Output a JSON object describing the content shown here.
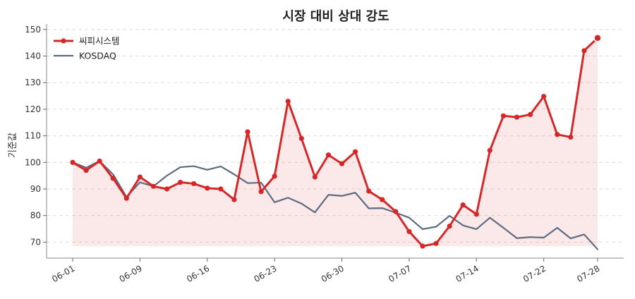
{
  "chart_data": {
    "type": "line",
    "title": "시장 대비 상대 강도",
    "xlabel": "",
    "ylabel": "기준값",
    "ylim": [
      64,
      151
    ],
    "yticks": [
      70,
      80,
      90,
      100,
      110,
      120,
      130,
      140,
      150
    ],
    "grid": "horizontal-dashed",
    "legend_position": "top-left",
    "x_tick_labels": [
      "06-01",
      "06-09",
      "06-16",
      "06-23",
      "06-30",
      "07-07",
      "07-14",
      "07-22",
      "07-28"
    ],
    "x_tick_index": [
      0,
      5,
      10,
      15,
      20,
      25,
      30,
      35,
      39
    ],
    "series": [
      {
        "name": "씨피시스템",
        "color": "#d62728",
        "fill": true,
        "markers": true,
        "values": [
          100.0,
          97.0,
          100.5,
          94.0,
          86.5,
          94.5,
          91.0,
          90.0,
          92.5,
          92.0,
          90.3,
          90.0,
          86.0,
          111.5,
          89.0,
          94.8,
          123.0,
          109.0,
          94.5,
          102.8,
          99.5,
          104.0,
          89.2,
          86.0,
          81.5,
          74.0,
          68.5,
          69.5,
          76.0,
          84.0,
          80.5,
          104.5,
          117.5,
          117.0,
          118.0,
          124.8,
          110.5,
          109.5,
          142.0,
          146.8
        ]
      },
      {
        "name": "KOSDAQ",
        "color": "#5d6b82",
        "fill": false,
        "markers": false,
        "values": [
          100.0,
          98.0,
          100.5,
          95.5,
          87.0,
          92.5,
          91.0,
          95.0,
          98.2,
          98.6,
          97.2,
          98.5,
          95.5,
          92.2,
          92.4,
          85.0,
          86.7,
          84.5,
          81.2,
          87.8,
          87.4,
          88.6,
          82.7,
          82.8,
          81.1,
          79.2,
          74.9,
          75.8,
          79.9,
          76.3,
          74.9,
          79.2,
          75.4,
          71.5,
          71.9,
          71.7,
          75.4,
          71.4,
          72.9,
          67.3
        ]
      }
    ]
  }
}
